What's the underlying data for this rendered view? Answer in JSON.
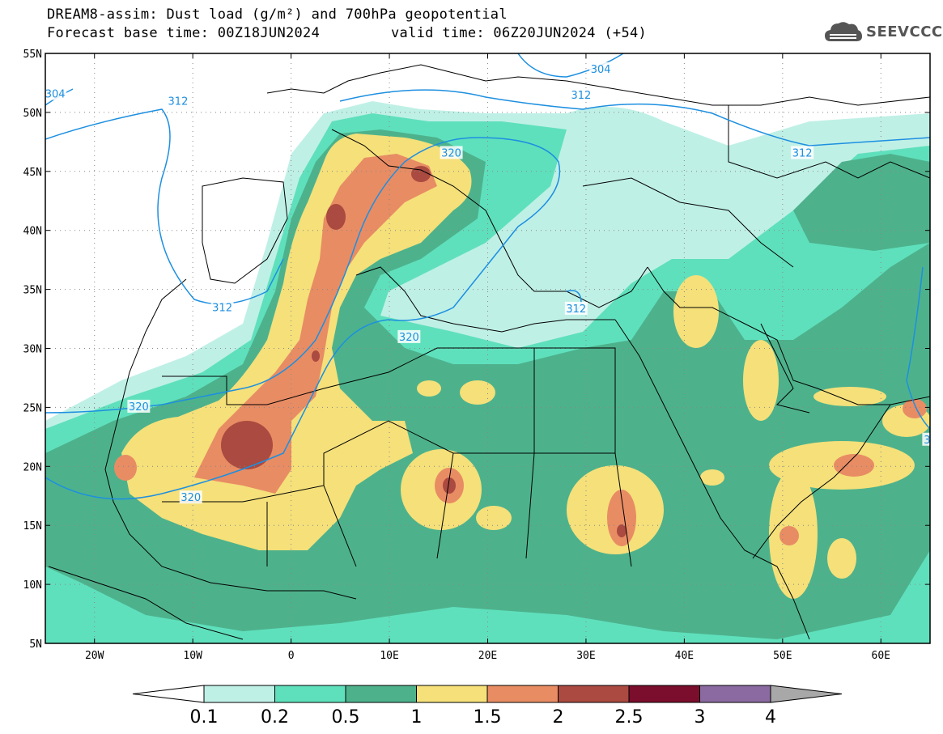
{
  "title": {
    "line1": "DREAM8-assim: Dust load (g/m²) and 700hPa geopotential",
    "line2_base": "Forecast base time: 00Z18JUN2024",
    "line2_valid": "valid time: 06Z20JUN2024 (+54)"
  },
  "logo": {
    "text": "SEEVCCC",
    "icon": "cloud-icon"
  },
  "map": {
    "lon_range": [
      -25,
      65
    ],
    "lat_range": [
      5,
      55
    ],
    "lat_ticks": [
      {
        "value": 55,
        "label": "55N"
      },
      {
        "value": 50,
        "label": "50N"
      },
      {
        "value": 45,
        "label": "45N"
      },
      {
        "value": 40,
        "label": "40N"
      },
      {
        "value": 35,
        "label": "35N"
      },
      {
        "value": 30,
        "label": "30N"
      },
      {
        "value": 25,
        "label": "25N"
      },
      {
        "value": 20,
        "label": "20N"
      },
      {
        "value": 15,
        "label": "15N"
      },
      {
        "value": 10,
        "label": "10N"
      },
      {
        "value": 5,
        "label": "5N"
      }
    ],
    "lon_ticks": [
      {
        "value": -20,
        "label": "20W"
      },
      {
        "value": -10,
        "label": "10W"
      },
      {
        "value": 0,
        "label": "0"
      },
      {
        "value": 10,
        "label": "10E"
      },
      {
        "value": 20,
        "label": "20E"
      },
      {
        "value": 30,
        "label": "30E"
      },
      {
        "value": 40,
        "label": "40E"
      },
      {
        "value": 50,
        "label": "50E"
      },
      {
        "value": 60,
        "label": "60E"
      }
    ],
    "grid": "dotted",
    "contour_labels": [
      {
        "text": "312",
        "lon": -11.5,
        "lat": 51.0
      },
      {
        "text": "312",
        "lon": -7.0,
        "lat": 33.5
      },
      {
        "text": "312",
        "lon": 29.5,
        "lat": 51.5
      },
      {
        "text": "304",
        "lon": 31.5,
        "lat": 53.7
      },
      {
        "text": "312",
        "lon": 52.0,
        "lat": 46.6
      },
      {
        "text": "312",
        "lon": 29.0,
        "lat": 33.4
      },
      {
        "text": "320",
        "lon": 16.3,
        "lat": 46.6
      },
      {
        "text": "320",
        "lon": 12.0,
        "lat": 31.0
      },
      {
        "text": "320",
        "lon": -15.5,
        "lat": 25.1
      },
      {
        "text": "320",
        "lon": -10.2,
        "lat": 17.4
      },
      {
        "text": "304",
        "lon": -24.0,
        "lat": 51.6
      },
      {
        "text": "3",
        "lon": 64.7,
        "lat": 22.3
      }
    ]
  },
  "colorbar": {
    "levels": [
      "0.1",
      "0.2",
      "0.5",
      "1",
      "1.5",
      "2",
      "2.5",
      "3",
      "4"
    ],
    "colors": [
      "#bff0e6",
      "#5fe0bc",
      "#4db28c",
      "#f5e07a",
      "#e88c64",
      "#aa4a40",
      "#7a0e2c",
      "#8a6aa0"
    ],
    "below_color": "#ffffff",
    "above_color": "#a8a8a8"
  },
  "palette": {
    "contour": "#1d8fe0",
    "dust_0_1": "#bff0e6",
    "dust_0_2": "#5fe0bc",
    "dust_0_5": "#4db28c",
    "dust_1": "#f5e07a",
    "dust_1_5": "#e88c64",
    "dust_2": "#aa4a40"
  }
}
